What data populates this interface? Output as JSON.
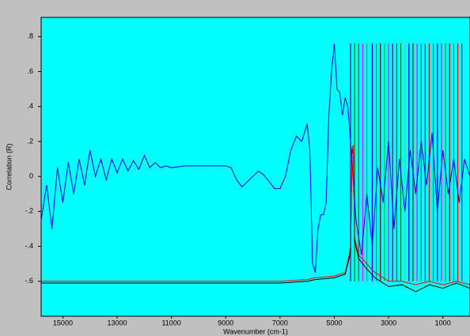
{
  "chart_data": {
    "type": "line",
    "x_label": "Wavenumber (cm-1)",
    "y_label": "Correlation (R)",
    "xlim": [
      15800,
      0
    ],
    "ylim": [
      -0.8,
      0.91
    ],
    "xticks": [
      15000,
      13000,
      11000,
      9000,
      7000,
      5000,
      3000,
      1000
    ],
    "yticks": [
      {
        "value": 0.8,
        "label": ".8"
      },
      {
        "value": 0.6,
        "label": ".6"
      },
      {
        "value": 0.4,
        "label": ".4"
      },
      {
        "value": 0.2,
        "label": ".2"
      },
      0,
      {
        "value": -0.2,
        "label": "-.2"
      },
      {
        "value": -0.4,
        "label": "-.4"
      },
      {
        "value": -0.6,
        "label": "-.6"
      }
    ],
    "background": "#00ffff",
    "series": [
      {
        "color": "#000000",
        "x": [
          15800,
          10000,
          7000,
          6000,
          5700,
          5000,
          4600,
          4450,
          4400,
          4350,
          4300,
          4250,
          4100,
          3800,
          3500,
          3000,
          2500,
          2000,
          1500,
          1000,
          500,
          0
        ],
        "values": [
          -0.61,
          -0.61,
          -0.61,
          -0.6,
          -0.59,
          -0.58,
          -0.56,
          -0.47,
          -0.42,
          0.13,
          0.16,
          -0.37,
          -0.47,
          -0.53,
          -0.58,
          -0.63,
          -0.62,
          -0.66,
          -0.62,
          -0.64,
          -0.61,
          -0.64
        ]
      },
      {
        "color": "#ff0000",
        "x": [
          15800,
          10000,
          7000,
          6000,
          5700,
          5000,
          4600,
          4450,
          4400,
          4350,
          4300,
          4250,
          4100,
          3800,
          3500,
          3000,
          2500,
          2000,
          1500,
          1000,
          500,
          0
        ],
        "values": [
          -0.6,
          -0.6,
          -0.6,
          -0.59,
          -0.58,
          -0.57,
          -0.55,
          -0.45,
          -0.4,
          0.15,
          0.18,
          -0.35,
          -0.45,
          -0.5,
          -0.55,
          -0.6,
          -0.6,
          -0.62,
          -0.6,
          -0.62,
          -0.6,
          -0.62
        ]
      },
      {
        "color": "#0000ff",
        "x": [
          15800,
          15600,
          15400,
          15200,
          15000,
          14800,
          14600,
          14400,
          14200,
          14000,
          13800,
          13600,
          13400,
          13200,
          13000,
          12800,
          12600,
          12400,
          12200,
          12000,
          11800,
          11600,
          11400,
          11200,
          11000,
          10500,
          10000,
          9500,
          9000,
          8800,
          8600,
          8400,
          8200,
          8000,
          7800,
          7600,
          7400,
          7200,
          7000,
          6800,
          6600,
          6400,
          6200,
          6000,
          5900,
          5800,
          5700,
          5600,
          5500,
          5400,
          5300,
          5200,
          5100,
          5000,
          4900,
          4800,
          4700,
          4600,
          4500,
          4400,
          4200,
          4000,
          3800,
          3600,
          3400,
          3200,
          3000,
          2800,
          2600,
          2400,
          2200,
          2000,
          1800,
          1600,
          1400,
          1200,
          1000,
          800,
          600,
          400,
          200,
          0
        ],
        "values": [
          -0.25,
          -0.05,
          -0.3,
          0.05,
          -0.15,
          0.08,
          -0.1,
          0.1,
          -0.05,
          0.15,
          0.0,
          0.1,
          -0.02,
          0.1,
          0.02,
          0.1,
          0.03,
          0.09,
          0.04,
          0.12,
          0.05,
          0.08,
          0.05,
          0.06,
          0.05,
          0.06,
          0.06,
          0.06,
          0.06,
          0.05,
          -0.02,
          -0.06,
          -0.03,
          0.0,
          0.03,
          0.01,
          -0.03,
          -0.07,
          -0.07,
          0.0,
          0.15,
          0.23,
          0.2,
          0.3,
          0.15,
          -0.5,
          -0.55,
          -0.3,
          -0.22,
          -0.22,
          -0.15,
          0.35,
          0.6,
          0.76,
          0.5,
          0.48,
          0.35,
          0.45,
          0.4,
          0.2,
          -0.25,
          -0.45,
          -0.1,
          -0.4,
          0.05,
          -0.15,
          0.2,
          -0.3,
          0.1,
          -0.2,
          0.15,
          -0.1,
          0.2,
          -0.05,
          0.25,
          -0.2,
          0.15,
          -0.1,
          0.1,
          -0.15,
          0.1,
          0.0
        ]
      }
    ],
    "spikes": {
      "top": 0.76,
      "bottom": -0.6,
      "x": [
        4400,
        4250,
        4100,
        3950,
        3800,
        3600,
        3450,
        3300,
        3150,
        3000,
        2850,
        2700,
        2550,
        2400,
        2250,
        2100,
        1950,
        1800,
        1650,
        1500,
        1350,
        1200,
        1050,
        900,
        750,
        600,
        450,
        300
      ],
      "colors": [
        "#800080",
        "#008000",
        "#ff0000",
        "#ff00ff",
        "#808000",
        "#0000ff",
        "#008080",
        "#800000",
        "#00c000",
        "#ff00ff",
        "#800080",
        "#ff0000",
        "#008000",
        "#c0c000",
        "#0000ff",
        "#800000",
        "#ff00ff",
        "#008080",
        "#800080",
        "#ff0000",
        "#008000",
        "#0000ff",
        "#ff00ff",
        "#808000",
        "#800000",
        "#008080",
        "#ff0000",
        "#800080"
      ]
    }
  }
}
